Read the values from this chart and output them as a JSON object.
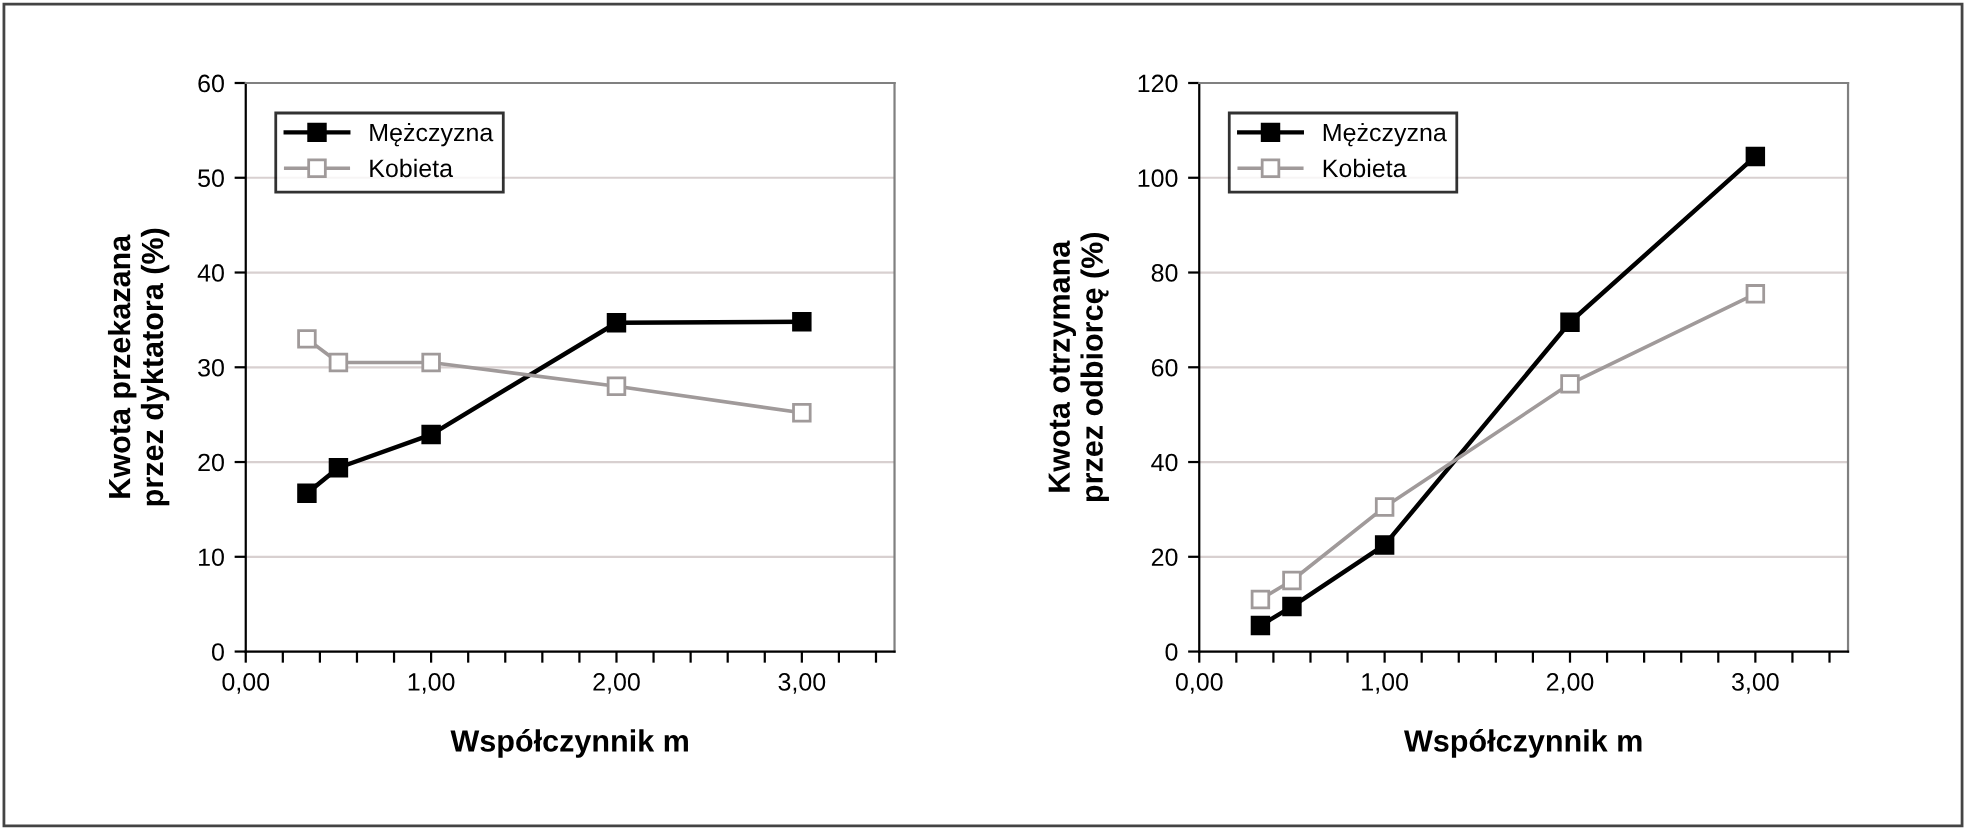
{
  "chart_data": [
    {
      "type": "line",
      "xlabel": "Współczynnik m",
      "ylabel": "Kwota przekazana\nprzez dyktatora (%)",
      "x": [
        0.33,
        0.5,
        1,
        2,
        3
      ],
      "series": [
        {
          "name": "Mężczyzna",
          "color": "#000000",
          "values": [
            16.7,
            19.4,
            22.9,
            34.7,
            34.8
          ]
        },
        {
          "name": "Kobieta",
          "color": "#a09a9a",
          "values": [
            33,
            30.5,
            30.5,
            28,
            25.2
          ]
        }
      ],
      "xlim": [
        0,
        3.5
      ],
      "xticks": [
        {
          "value": 0,
          "label": "0,00"
        },
        {
          "value": 0.2,
          "label": null
        },
        {
          "value": 0.4,
          "label": null
        },
        {
          "value": 0.6,
          "label": null
        },
        {
          "value": 0.8,
          "label": null
        },
        {
          "value": 1,
          "label": "1,00"
        },
        {
          "value": 1.2,
          "label": null
        },
        {
          "value": 1.4,
          "label": null
        },
        {
          "value": 1.6,
          "label": null
        },
        {
          "value": 1.8,
          "label": null
        },
        {
          "value": 2,
          "label": "2,00"
        },
        {
          "value": 2.2,
          "label": null
        },
        {
          "value": 2.4,
          "label": null
        },
        {
          "value": 2.6,
          "label": null
        },
        {
          "value": 2.8,
          "label": null
        },
        {
          "value": 3,
          "label": "3,00"
        },
        {
          "value": 3.2,
          "label": null
        },
        {
          "value": 3.4,
          "label": null
        }
      ],
      "ylim": [
        0,
        60
      ],
      "yticks": [
        0,
        10,
        20,
        30,
        40,
        50,
        60
      ],
      "grid": "y",
      "legend": "top left",
      "marker": "square",
      "line_style": "solid"
    },
    {
      "type": "line",
      "xlabel": "Współczynnik m",
      "ylabel": "Kwota otrzymana\nprzez odbiorcę (%)",
      "x": [
        0.33,
        0.5,
        1,
        2,
        3
      ],
      "series": [
        {
          "name": "Mężczyzna",
          "color": "#000000",
          "values": [
            5.5,
            9.5,
            22.5,
            69.5,
            104.5
          ]
        },
        {
          "name": "Kobieta",
          "color": "#a09a9a",
          "values": [
            11,
            15,
            30.5,
            56.5,
            75.5
          ]
        }
      ],
      "xlim": [
        0,
        3.5
      ],
      "xticks": [
        {
          "value": 0,
          "label": "0,00"
        },
        {
          "value": 0.2,
          "label": null
        },
        {
          "value": 0.4,
          "label": null
        },
        {
          "value": 0.6,
          "label": null
        },
        {
          "value": 0.8,
          "label": null
        },
        {
          "value": 1,
          "label": "1,00"
        },
        {
          "value": 1.2,
          "label": null
        },
        {
          "value": 1.4,
          "label": null
        },
        {
          "value": 1.6,
          "label": null
        },
        {
          "value": 1.8,
          "label": null
        },
        {
          "value": 2,
          "label": "2,00"
        },
        {
          "value": 2.2,
          "label": null
        },
        {
          "value": 2.4,
          "label": null
        },
        {
          "value": 2.6,
          "label": null
        },
        {
          "value": 2.8,
          "label": null
        },
        {
          "value": 3,
          "label": "3,00"
        },
        {
          "value": 3.2,
          "label": null
        },
        {
          "value": 3.4,
          "label": null
        }
      ],
      "ylim": [
        0,
        120
      ],
      "yticks": [
        0,
        20,
        40,
        60,
        80,
        100,
        120
      ],
      "grid": "y",
      "legend": "top left",
      "marker": "square",
      "line_style": "solid"
    }
  ]
}
